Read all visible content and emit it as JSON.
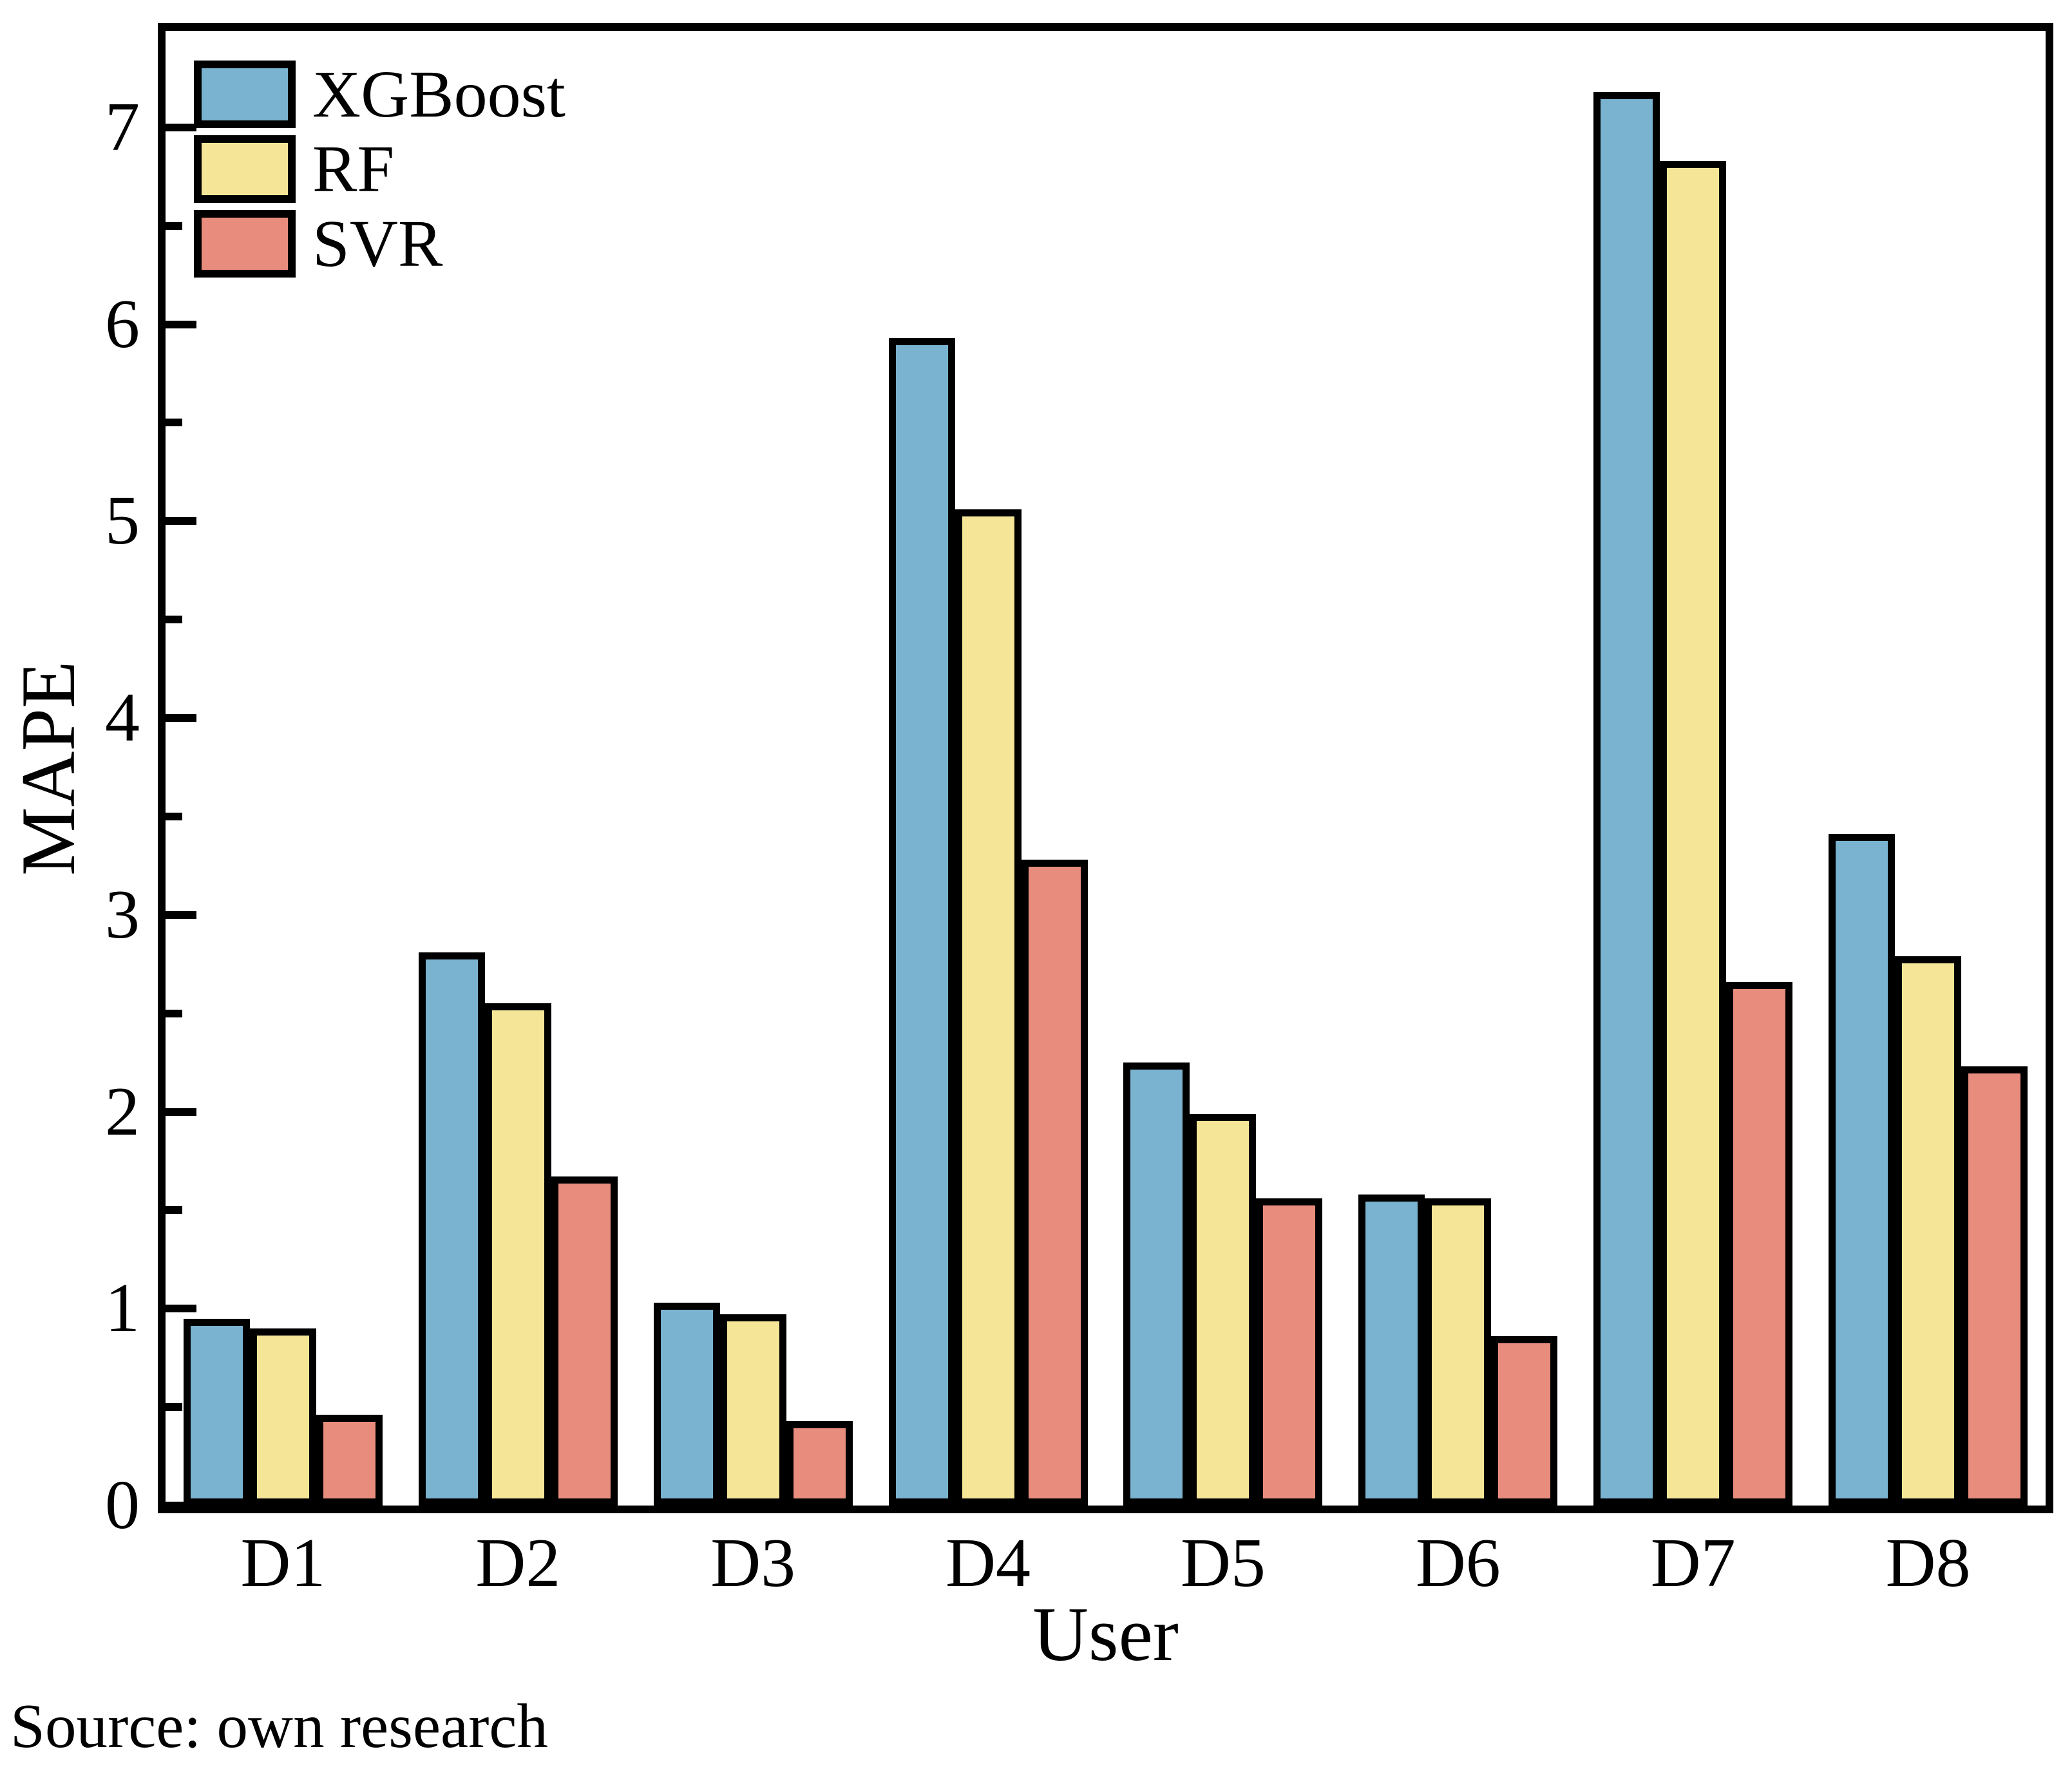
{
  "figure": {
    "background": "#ffffff",
    "frame_color": "#000000"
  },
  "source_note": "Source: own research",
  "chart_data": {
    "type": "bar",
    "title": "",
    "xlabel": "User",
    "ylabel": "MAPE",
    "categories": [
      "D1",
      "D2",
      "D3",
      "D4",
      "D5",
      "D6",
      "D7",
      "D8"
    ],
    "series": [
      {
        "name": "XGBoost",
        "color": "#7AB3D0",
        "values": [
          0.95,
          2.81,
          1.03,
          5.93,
          2.25,
          1.58,
          7.18,
          3.41
        ]
      },
      {
        "name": "RF",
        "color": "#F5E697",
        "values": [
          0.9,
          2.55,
          0.97,
          5.06,
          1.99,
          1.56,
          6.83,
          2.79
        ]
      },
      {
        "name": "SVR",
        "color": "#E88C7E",
        "values": [
          0.46,
          1.67,
          0.43,
          3.28,
          1.56,
          0.86,
          2.66,
          2.23
        ]
      }
    ],
    "ylim": [
      0,
      7.49
    ],
    "ytick_step": 1,
    "yminor_step": 0.5,
    "ytick_labels": [
      "0",
      "1",
      "2",
      "3",
      "4",
      "5",
      "6",
      "7"
    ],
    "grid": false,
    "legend_position": "top-left",
    "bar_border_color": "#000000",
    "ticks_direction": "in"
  }
}
